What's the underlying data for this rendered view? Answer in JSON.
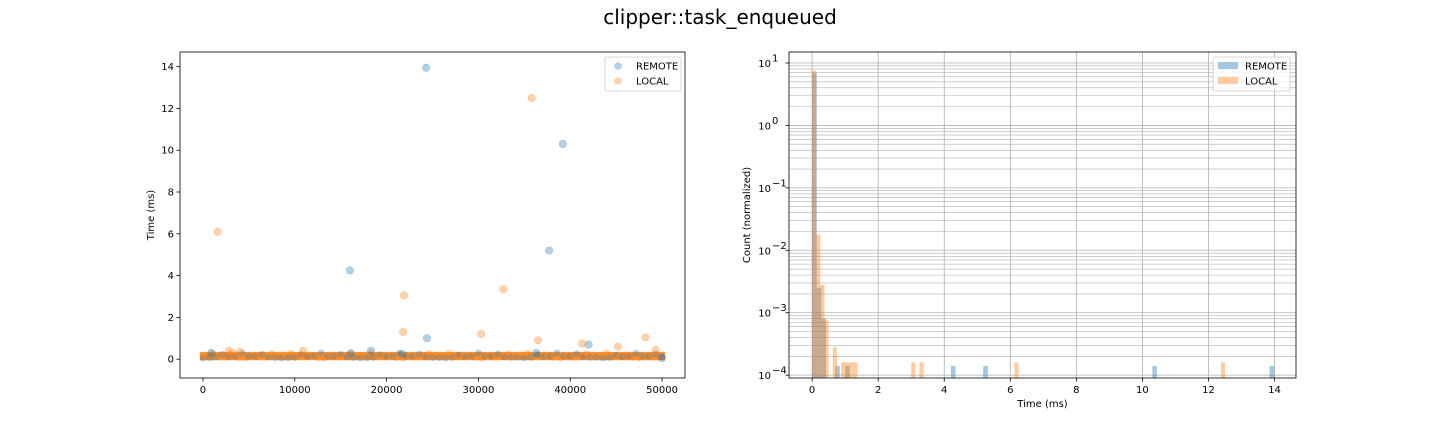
{
  "figure": {
    "suptitle": "clipper::task_enqueued"
  },
  "colors": {
    "remote": "#1f77b4",
    "local": "#ff7f0e",
    "grid": "#b0b0b0"
  },
  "chart_data": [
    {
      "type": "scatter",
      "title": "",
      "xlabel": "",
      "ylabel": "Time (ms)",
      "xlim": [
        -2500,
        52500
      ],
      "ylim": [
        -0.9,
        14.7
      ],
      "xticks": [
        0,
        10000,
        20000,
        30000,
        40000,
        50000
      ],
      "xtick_labels": [
        "0",
        "10000",
        "20000",
        "30000",
        "40000",
        "50000"
      ],
      "yticks": [
        0,
        2,
        4,
        6,
        8,
        10,
        12,
        14
      ],
      "ytick_labels": [
        "0",
        "2",
        "4",
        "6",
        "8",
        "10",
        "12",
        "14"
      ],
      "legend": "top-right",
      "grid": false,
      "series": [
        {
          "name": "REMOTE",
          "x": [
            24300,
            39200,
            37700,
            16000,
            24400,
            42000,
            18300,
            21700,
            900,
            36300,
            16100,
            50000
          ],
          "y": [
            13.95,
            10.3,
            5.2,
            4.25,
            1.0,
            0.7,
            0.4,
            0.25,
            0.3,
            0.3,
            0.28,
            0.05
          ]
        },
        {
          "name": "LOCAL",
          "x": [
            35800,
            1600,
            21900,
            32700,
            21800,
            30300,
            48200,
            36500,
            41300,
            10900,
            2800,
            4000,
            45200,
            49300,
            3200
          ],
          "y": [
            12.5,
            6.1,
            3.05,
            3.35,
            1.3,
            1.2,
            1.05,
            0.9,
            0.75,
            0.4,
            0.4,
            0.35,
            0.6,
            0.45,
            0.3
          ]
        }
      ],
      "baseline_band": {
        "x_range": [
          0,
          50000
        ],
        "y_range": [
          -0.05,
          0.35
        ]
      }
    },
    {
      "type": "histogram",
      "title": "",
      "xlabel": "Time (ms)",
      "ylabel": "Count (normalized)",
      "y_scale": "log",
      "xlim": [
        -0.7,
        14.65
      ],
      "ylim": [
        9e-05,
        15
      ],
      "xticks": [
        0,
        2,
        4,
        6,
        8,
        10,
        12,
        14
      ],
      "xtick_labels": [
        "0",
        "2",
        "4",
        "6",
        "8",
        "10",
        "12",
        "14"
      ],
      "yticks": [
        0.0001,
        0.001,
        0.01,
        0.1,
        1,
        10
      ],
      "ytick_labels": [
        [
          "10",
          "−4"
        ],
        [
          "10",
          "−3"
        ],
        [
          "10",
          "−2"
        ],
        [
          "10",
          "−1"
        ],
        [
          "10",
          "0"
        ],
        [
          "10",
          "1"
        ]
      ],
      "legend": "top-right",
      "grid": true,
      "series": [
        {
          "name": "REMOTE",
          "bins": [
            [
              0.0,
              0.14,
              7.0
            ],
            [
              0.14,
              0.28,
              0.0025
            ],
            [
              0.28,
              0.42,
              0.0008
            ],
            [
              0.7,
              0.84,
              0.00014
            ],
            [
              1.0,
              1.14,
              0.00014
            ],
            [
              4.2,
              4.34,
              0.00014
            ],
            [
              5.18,
              5.32,
              0.00014
            ],
            [
              10.3,
              10.44,
              0.00014
            ],
            [
              13.85,
              13.99,
              0.00014
            ]
          ]
        },
        {
          "name": "LOCAL",
          "bins": [
            [
              0.0,
              0.125,
              7.6
            ],
            [
              0.125,
              0.25,
              0.018
            ],
            [
              0.25,
              0.375,
              0.0028
            ],
            [
              0.375,
              0.5,
              0.00075
            ],
            [
              0.625,
              0.75,
              0.00028
            ],
            [
              0.875,
              1.0,
              0.00016
            ],
            [
              1.0,
              1.125,
              0.00016
            ],
            [
              1.125,
              1.25,
              0.00016
            ],
            [
              1.25,
              1.375,
              0.00016
            ],
            [
              3.0,
              3.125,
              0.00016
            ],
            [
              3.25,
              3.375,
              0.00016
            ],
            [
              6.125,
              6.25,
              0.00016
            ],
            [
              12.375,
              12.5,
              0.00016
            ]
          ]
        }
      ]
    }
  ]
}
